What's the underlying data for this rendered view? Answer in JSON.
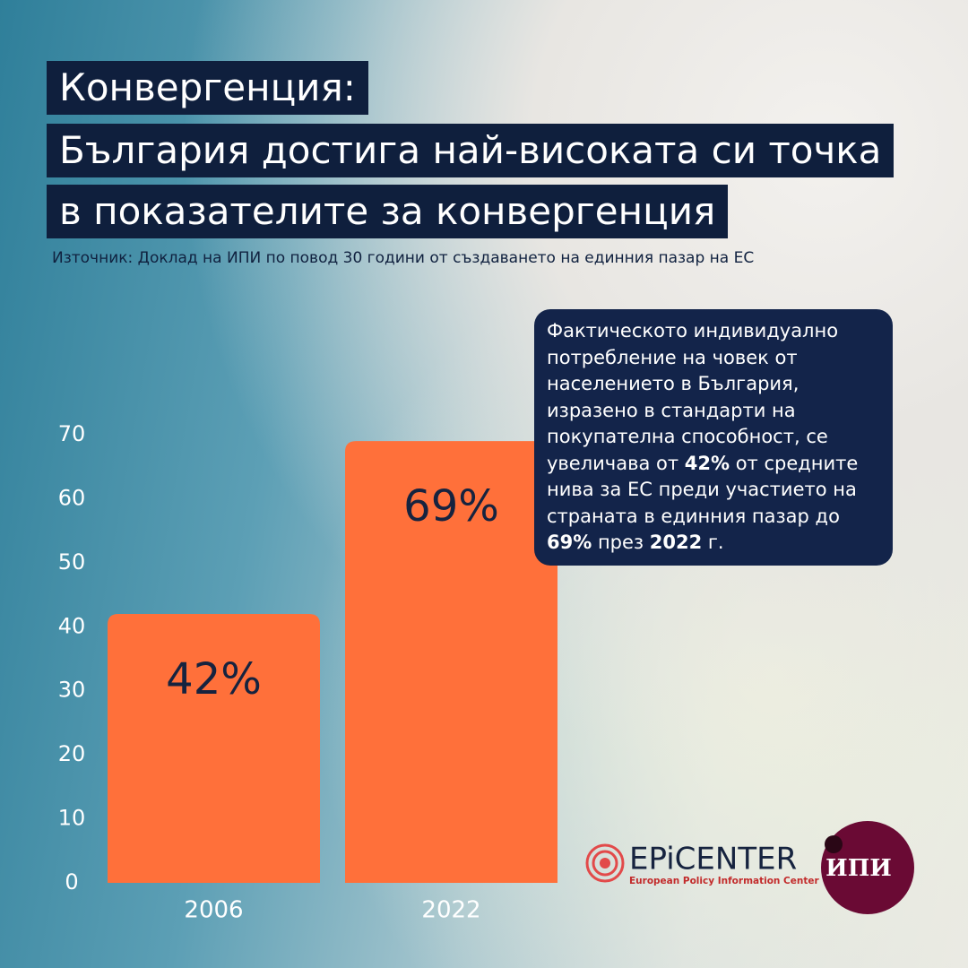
{
  "chart_data": {
    "type": "bar",
    "title": [
      "Конвергенция:",
      "България достига най-високата си точка",
      "в показателите за конвергенция"
    ],
    "subtitle": "Източник: Доклад на ИПИ по повод 30 години от създаването на единния пазар на ЕС",
    "annotation": [
      "Фактическото индивидуално потребление на човек от населението в България, изразено в стандарти на покупателна способност, се увеличава от ",
      "42%",
      " от средните нива за ЕС преди участието на страната в единния пазар до ",
      "69%",
      " през ",
      "2022",
      " г."
    ],
    "categories": [
      "2006",
      "2022"
    ],
    "values": [
      42,
      69
    ],
    "value_labels": [
      "42%",
      "69%"
    ],
    "color": "#ff703a",
    "ylim": [
      0,
      70
    ],
    "yticks": [
      0,
      10,
      20,
      30,
      40,
      50,
      60,
      70
    ],
    "grid": false
  },
  "logos": {
    "epicenter": "EPiCENTER",
    "epicenter_subtitle": "European Policy Information Center",
    "ipi": "ИПИ"
  }
}
